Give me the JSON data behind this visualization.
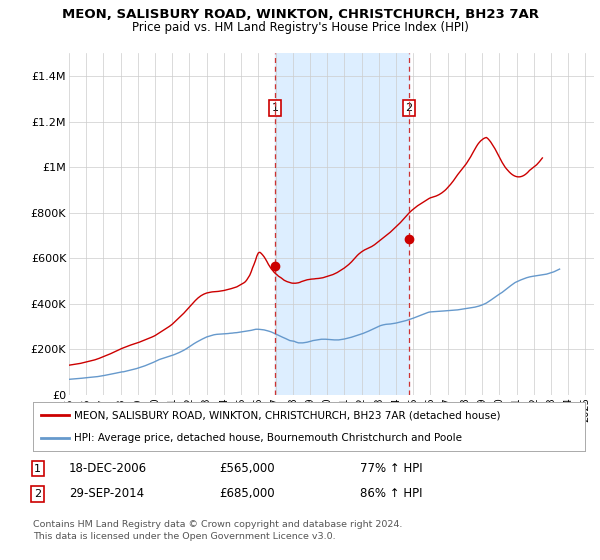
{
  "title": "MEON, SALISBURY ROAD, WINKTON, CHRISTCHURCH, BH23 7AR",
  "subtitle": "Price paid vs. HM Land Registry's House Price Index (HPI)",
  "legend_line1": "MEON, SALISBURY ROAD, WINKTON, CHRISTCHURCH, BH23 7AR (detached house)",
  "legend_line2": "HPI: Average price, detached house, Bournemouth Christchurch and Poole",
  "footer1": "Contains HM Land Registry data © Crown copyright and database right 2024.",
  "footer2": "This data is licensed under the Open Government Licence v3.0.",
  "annotation1_label": "1",
  "annotation1_date": "18-DEC-2006",
  "annotation1_price": "£565,000",
  "annotation1_hpi": "77% ↑ HPI",
  "annotation2_label": "2",
  "annotation2_date": "29-SEP-2014",
  "annotation2_price": "£685,000",
  "annotation2_hpi": "86% ↑ HPI",
  "sale1_x": 2006.958,
  "sale1_y": 565000,
  "sale2_x": 2014.75,
  "sale2_y": 685000,
  "hpi_color": "#6699cc",
  "property_color": "#cc0000",
  "vline_color": "#cc3333",
  "highlight_color": "#ddeeff",
  "grid_color": "#cccccc",
  "background_color": "#ffffff",
  "xlim": [
    1995.0,
    2025.5
  ],
  "ylim": [
    0,
    1500000
  ],
  "yticks": [
    0,
    200000,
    400000,
    600000,
    800000,
    1000000,
    1200000,
    1400000
  ],
  "ytick_labels": [
    "£0",
    "£200K",
    "£400K",
    "£600K",
    "£800K",
    "£1M",
    "£1.2M",
    "£1.4M"
  ],
  "xticks": [
    1995,
    1996,
    1997,
    1998,
    1999,
    2000,
    2001,
    2002,
    2003,
    2004,
    2005,
    2006,
    2007,
    2008,
    2009,
    2010,
    2011,
    2012,
    2013,
    2014,
    2015,
    2016,
    2017,
    2018,
    2019,
    2020,
    2021,
    2022,
    2023,
    2024,
    2025
  ],
  "hpi_y_monthly": [
    68000,
    68500,
    69000,
    69500,
    70000,
    70500,
    71000,
    71500,
    72000,
    72800,
    73600,
    74400,
    75000,
    75600,
    76200,
    76800,
    77500,
    78200,
    78900,
    79600,
    80000,
    81000,
    82000,
    83000,
    84200,
    85400,
    86600,
    87800,
    89000,
    90300,
    91600,
    92900,
    94200,
    95500,
    96800,
    98100,
    99400,
    100700,
    101000,
    102500,
    104000,
    105500,
    107000,
    108500,
    110000,
    111500,
    113000,
    115000,
    117000,
    119000,
    121000,
    123000,
    125000,
    127500,
    130000,
    132500,
    135000,
    137500,
    140000,
    143000,
    146000,
    149000,
    152000,
    155000,
    157000,
    159000,
    161000,
    163000,
    165000,
    167000,
    169000,
    171000,
    173000,
    175500,
    178000,
    180500,
    183000,
    186000,
    189000,
    192000,
    195500,
    199000,
    203000,
    207000,
    211000,
    215500,
    220000,
    224000,
    228000,
    231500,
    235000,
    238500,
    242000,
    245000,
    248000,
    251000,
    254000,
    256000,
    258000,
    260000,
    262000,
    263500,
    264500,
    265500,
    266000,
    266500,
    267000,
    267300,
    267700,
    268000,
    268500,
    269000,
    270000,
    270500,
    271000,
    272000,
    272500,
    273000,
    274000,
    275000,
    276000,
    277000,
    278000,
    279000,
    280000,
    281000,
    282000,
    283000,
    284500,
    286000,
    287500,
    288000,
    287800,
    287200,
    286500,
    285800,
    285000,
    283500,
    282000,
    280000,
    278000,
    276000,
    273000,
    270000,
    267500,
    264500,
    261500,
    258500,
    255500,
    252500,
    250000,
    247000,
    244000,
    241000,
    238000,
    237000,
    236000,
    235000,
    232000,
    230000,
    228000,
    228000,
    228000,
    228000,
    229000,
    230000,
    231000,
    232500,
    234000,
    236000,
    238000,
    239000,
    240000,
    241000,
    242000,
    243000,
    244000,
    244000,
    244000,
    244000,
    243500,
    243000,
    242500,
    242000,
    241500,
    241000,
    241000,
    241000,
    241000,
    242000,
    243000,
    244000,
    245000,
    246500,
    248000,
    249500,
    251000,
    253000,
    255000,
    257000,
    259000,
    261000,
    263000,
    265000,
    267000,
    269500,
    272000,
    274500,
    277000,
    280000,
    283000,
    286000,
    289000,
    292000,
    295000,
    298000,
    301000,
    303500,
    305500,
    307000,
    308500,
    309500,
    310000,
    310500,
    311000,
    312000,
    313000,
    314000,
    315000,
    316500,
    318000,
    319500,
    321000,
    322500,
    324000,
    326000,
    328000,
    330000,
    332000,
    334000,
    336500,
    339000,
    341500,
    344000,
    346500,
    349000,
    351500,
    354000,
    356000,
    358500,
    361000,
    363000,
    364000,
    364500,
    365000,
    365500,
    366000,
    366300,
    366700,
    367000,
    367500,
    368000,
    368500,
    369000,
    369500,
    370000,
    370500,
    371000,
    371500,
    372000,
    372500,
    373000,
    374000,
    375000,
    376000,
    377000,
    378000,
    379000,
    380000,
    381000,
    382000,
    383000,
    384000,
    385000,
    386500,
    388000,
    390000,
    392000,
    394500,
    397000,
    400000,
    403000,
    407000,
    411000,
    415500,
    420000,
    424500,
    429000,
    433500,
    438000,
    442000,
    446000,
    450000,
    455000,
    460000,
    465000,
    470000,
    475000,
    479500,
    484000,
    488500,
    493000,
    496000,
    499000,
    502000,
    504500,
    507000,
    509500,
    512000,
    514000,
    516000,
    517500,
    519000,
    520000,
    521000,
    522000,
    523000,
    524000,
    525000,
    526000,
    527000,
    528000,
    529000,
    530000,
    532000,
    534000,
    536000,
    538000,
    540000,
    543000,
    546000,
    549000,
    552000
  ],
  "property_y_monthly": [
    130000,
    131000,
    132000,
    133000,
    134000,
    135000,
    136000,
    137000,
    138000,
    139500,
    141000,
    142500,
    144000,
    145500,
    147000,
    148500,
    150000,
    151500,
    153500,
    155500,
    157500,
    160000,
    162500,
    165000,
    167500,
    170000,
    172500,
    175000,
    177500,
    180500,
    183500,
    186500,
    189500,
    192500,
    195500,
    198500,
    201500,
    204000,
    206500,
    209000,
    211500,
    214000,
    216500,
    218500,
    220500,
    222500,
    224500,
    226500,
    228500,
    231000,
    233500,
    236000,
    238500,
    241000,
    243500,
    246000,
    248500,
    251000,
    254000,
    257000,
    260000,
    264000,
    268000,
    272000,
    276000,
    280000,
    284000,
    288000,
    292000,
    296000,
    300500,
    305000,
    310000,
    316000,
    322000,
    328000,
    334000,
    340000,
    346000,
    352000,
    358000,
    365000,
    372000,
    379000,
    386000,
    393000,
    400000,
    407000,
    413500,
    419500,
    425500,
    430500,
    435000,
    438500,
    442000,
    444500,
    447000,
    448500,
    450000,
    451000,
    452000,
    452500,
    453000,
    453500,
    454000,
    455000,
    456000,
    457000,
    458000,
    459500,
    461000,
    462500,
    464000,
    466000,
    468000,
    470000,
    472000,
    474000,
    477500,
    481000,
    484500,
    488000,
    492000,
    497000,
    505000,
    515000,
    525000,
    540000,
    558000,
    573000,
    590000,
    610000,
    623000,
    626000,
    621000,
    614000,
    606000,
    596000,
    585000,
    573000,
    563000,
    553000,
    546000,
    538000,
    532000,
    527000,
    521000,
    517000,
    513000,
    508000,
    503000,
    500000,
    497000,
    495000,
    493000,
    491000,
    490000,
    490000,
    490000,
    491000,
    492000,
    494000,
    497000,
    499000,
    501000,
    503000,
    505000,
    506000,
    507000,
    508000,
    508500,
    509000,
    510000,
    510500,
    511000,
    512000,
    513000,
    514000,
    516000,
    518000,
    520000,
    522000,
    524000,
    526000,
    528000,
    531000,
    534000,
    537000,
    541000,
    545000,
    549000,
    553000,
    557000,
    562000,
    567000,
    572000,
    578000,
    584000,
    591000,
    598000,
    605000,
    612000,
    618000,
    623000,
    628000,
    632000,
    636000,
    639000,
    642000,
    645000,
    648000,
    651000,
    655000,
    659000,
    664000,
    669000,
    674000,
    679000,
    684000,
    689000,
    694000,
    699000,
    704000,
    709000,
    714000,
    720000,
    726000,
    732000,
    738000,
    744000,
    750000,
    756000,
    763000,
    770000,
    777000,
    784000,
    791000,
    798000,
    804000,
    810000,
    815000,
    820000,
    825000,
    830000,
    834000,
    838000,
    842000,
    846000,
    850000,
    854000,
    858000,
    862000,
    865000,
    867000,
    869000,
    871000,
    873000,
    876000,
    879000,
    883000,
    887000,
    892000,
    897000,
    903000,
    910000,
    917000,
    924000,
    932000,
    940000,
    949000,
    958000,
    967000,
    975000,
    983000,
    991000,
    999000,
    1007000,
    1015000,
    1025000,
    1035000,
    1045000,
    1057000,
    1068000,
    1079000,
    1090000,
    1100000,
    1108000,
    1115000,
    1120000,
    1125000,
    1128000,
    1130000,
    1125000,
    1118000,
    1110000,
    1100000,
    1090000,
    1080000,
    1068000,
    1056000,
    1044000,
    1032000,
    1020000,
    1010000,
    1000000,
    992000,
    985000,
    978000,
    972000,
    967000,
    963000,
    960000,
    958000,
    957000,
    957000,
    958000,
    960000,
    963000,
    967000,
    972000,
    978000,
    985000,
    990000,
    995000,
    1000000,
    1005000,
    1010000,
    1017000,
    1024000,
    1032000,
    1040000
  ]
}
